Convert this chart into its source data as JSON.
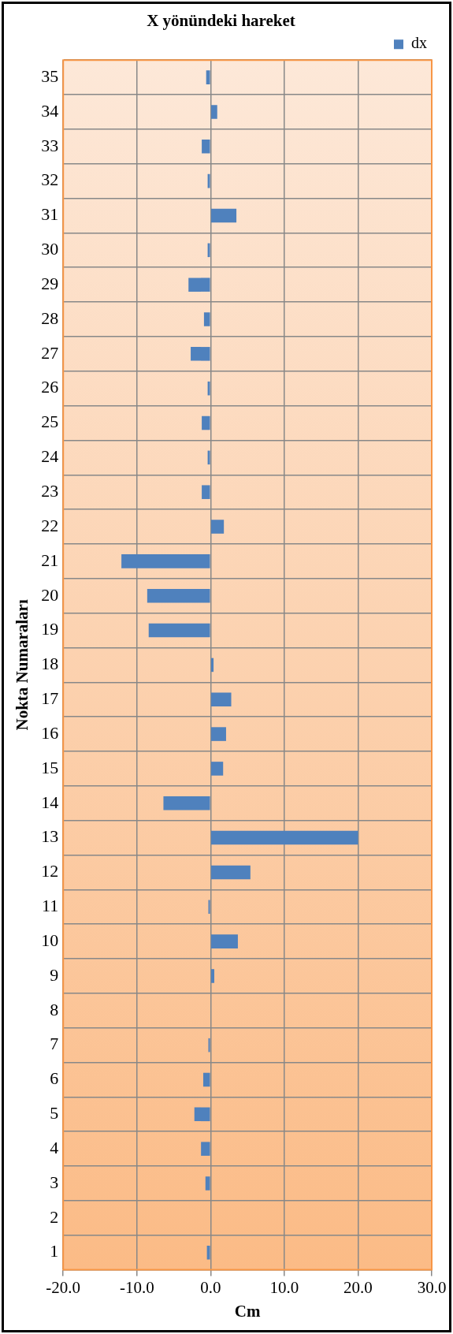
{
  "chart_data": {
    "type": "bar",
    "orientation": "horizontal",
    "title": "X yönündeki hareket",
    "xlabel": "Cm",
    "ylabel": "Nokta Numaraları",
    "categories": [
      "35",
      "34",
      "33",
      "32",
      "31",
      "30",
      "29",
      "28",
      "27",
      "26",
      "25",
      "24",
      "23",
      "22",
      "21",
      "20",
      "19",
      "18",
      "17",
      "16",
      "15",
      "14",
      "13",
      "12",
      "11",
      "10",
      "9",
      "8",
      "7",
      "6",
      "5",
      "4",
      "3",
      "2",
      "1"
    ],
    "series": [
      {
        "name": "dx",
        "color": "#4f81bd",
        "values": [
          -0.6,
          0.9,
          -1.2,
          -0.4,
          3.5,
          -0.4,
          -3.0,
          -0.9,
          -2.7,
          -0.4,
          -1.2,
          -0.4,
          -1.2,
          1.8,
          -12.1,
          -8.6,
          -8.4,
          0.4,
          2.8,
          2.1,
          1.7,
          -6.4,
          20.0,
          5.4,
          -0.3,
          3.7,
          0.5,
          0,
          -0.3,
          -1.0,
          -2.2,
          -1.3,
          -0.7,
          0,
          -0.5
        ]
      }
    ],
    "xlim": [
      -20,
      30
    ],
    "xticks": [
      {
        "value": -20,
        "label": "-20.0"
      },
      {
        "value": -10,
        "label": "-10.0"
      },
      {
        "value": 0,
        "label": "0.0"
      },
      {
        "value": 10,
        "label": "10.0"
      },
      {
        "value": 20,
        "label": "20.0"
      },
      {
        "value": 30,
        "label": "30.0"
      }
    ],
    "grid": true,
    "legend": "top right"
  }
}
